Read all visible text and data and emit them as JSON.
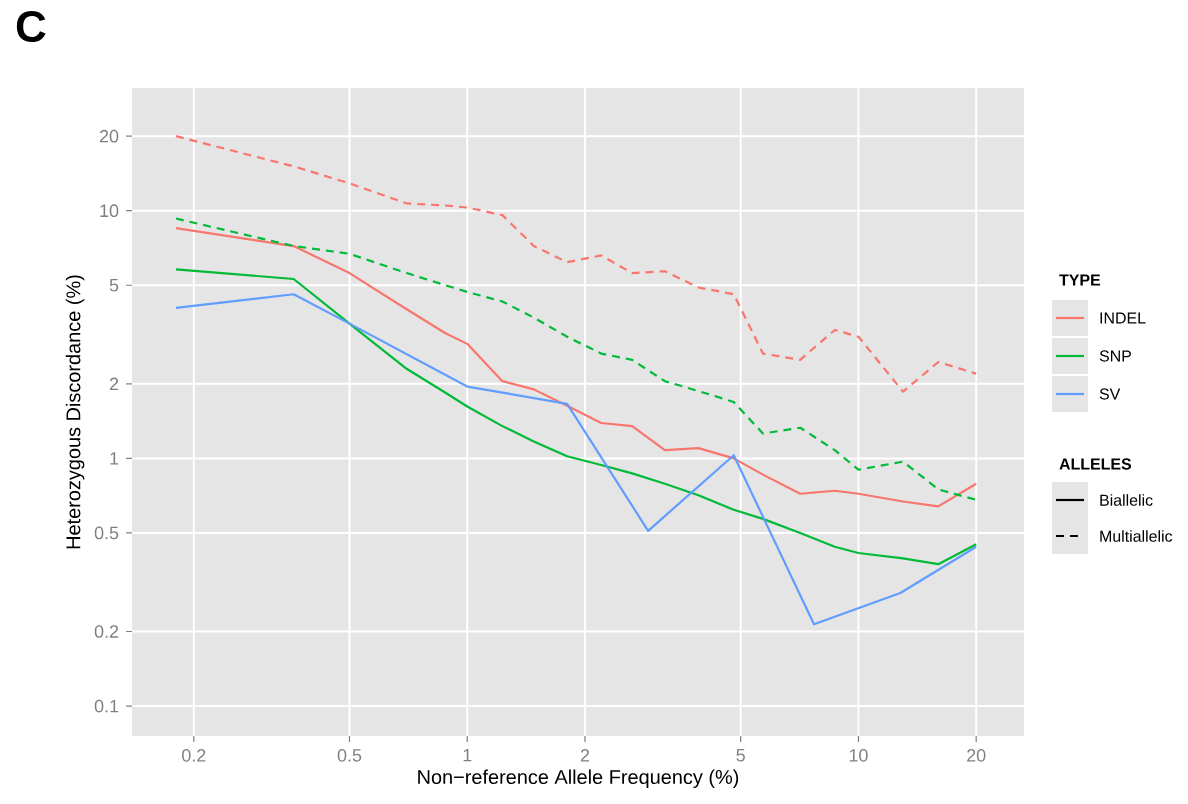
{
  "chart_data": {
    "type": "line",
    "title": "C",
    "xlabel": "Non−reference Allele Frequency (%)",
    "ylabel": "Heterozygous Discordance (%)",
    "legend_title": "TYPE",
    "legend": "right",
    "annotations": [
      "ALLELES",
      "Biallelic",
      "Multiallelic"
    ],
    "log": "xy",
    "grid": true,
    "xlim": [
      0.139,
      26.5
    ],
    "ylim": [
      0.0757,
      31.3
    ],
    "xticks": [
      0.2,
      0.5,
      1,
      2,
      5,
      10,
      20
    ],
    "yticks": [
      0.1,
      0.2,
      0.5,
      1,
      2,
      5,
      10,
      20
    ],
    "x": [
      0.18,
      0.36,
      0.5,
      0.7,
      0.88,
      1,
      1.23,
      1.48,
      1.8,
      2.2,
      2.64,
      3.2,
      3.9,
      4.8,
      5.7,
      7.1,
      8.7,
      10,
      13,
      16,
      20
    ],
    "series": [
      {
        "name": "INDEL",
        "color": "#f8766d",
        "line_style": "solid",
        "values": [
          8.5,
          7.2,
          5.6,
          4.0,
          3.2,
          2.9,
          2.05,
          1.9,
          1.63,
          1.39,
          1.35,
          1.08,
          1.1,
          1.0,
          0.86,
          0.72,
          0.74,
          0.72,
          0.67,
          0.64,
          0.79
        ]
      },
      {
        "color": "#f8766d",
        "line_style": "dashed",
        "values": [
          20,
          15.1,
          12.9,
          10.7,
          10.5,
          10.3,
          9.6,
          7.2,
          6.2,
          6.6,
          5.6,
          5.7,
          4.9,
          4.6,
          2.65,
          2.5,
          3.3,
          3.1,
          1.86,
          2.45,
          2.2
        ]
      },
      {
        "name": "SNP",
        "color": "#00ba38",
        "line_style": "solid",
        "values": [
          5.8,
          5.3,
          3.5,
          2.3,
          1.84,
          1.62,
          1.35,
          1.17,
          1.02,
          0.94,
          0.87,
          0.79,
          0.71,
          0.62,
          0.57,
          0.5,
          0.44,
          0.415,
          0.395,
          0.374,
          0.45
        ]
      },
      {
        "color": "#00ba38",
        "line_style": "dashed",
        "values": [
          9.3,
          7.2,
          6.7,
          5.6,
          5.0,
          4.7,
          4.3,
          3.7,
          3.1,
          2.65,
          2.5,
          2.05,
          1.87,
          1.69,
          1.26,
          1.33,
          1.08,
          0.9,
          0.97,
          0.75,
          0.68
        ]
      },
      {
        "name": "SV",
        "color": "#619cff",
        "line_style": "solid",
        "x": [
          0.18,
          0.36,
          0.5,
          1,
          1.8,
          2.9,
          4.8,
          7.7,
          12.8,
          20
        ],
        "values": [
          4.05,
          4.6,
          3.5,
          1.95,
          1.66,
          0.51,
          1.03,
          0.214,
          0.286,
          0.44
        ]
      }
    ]
  }
}
